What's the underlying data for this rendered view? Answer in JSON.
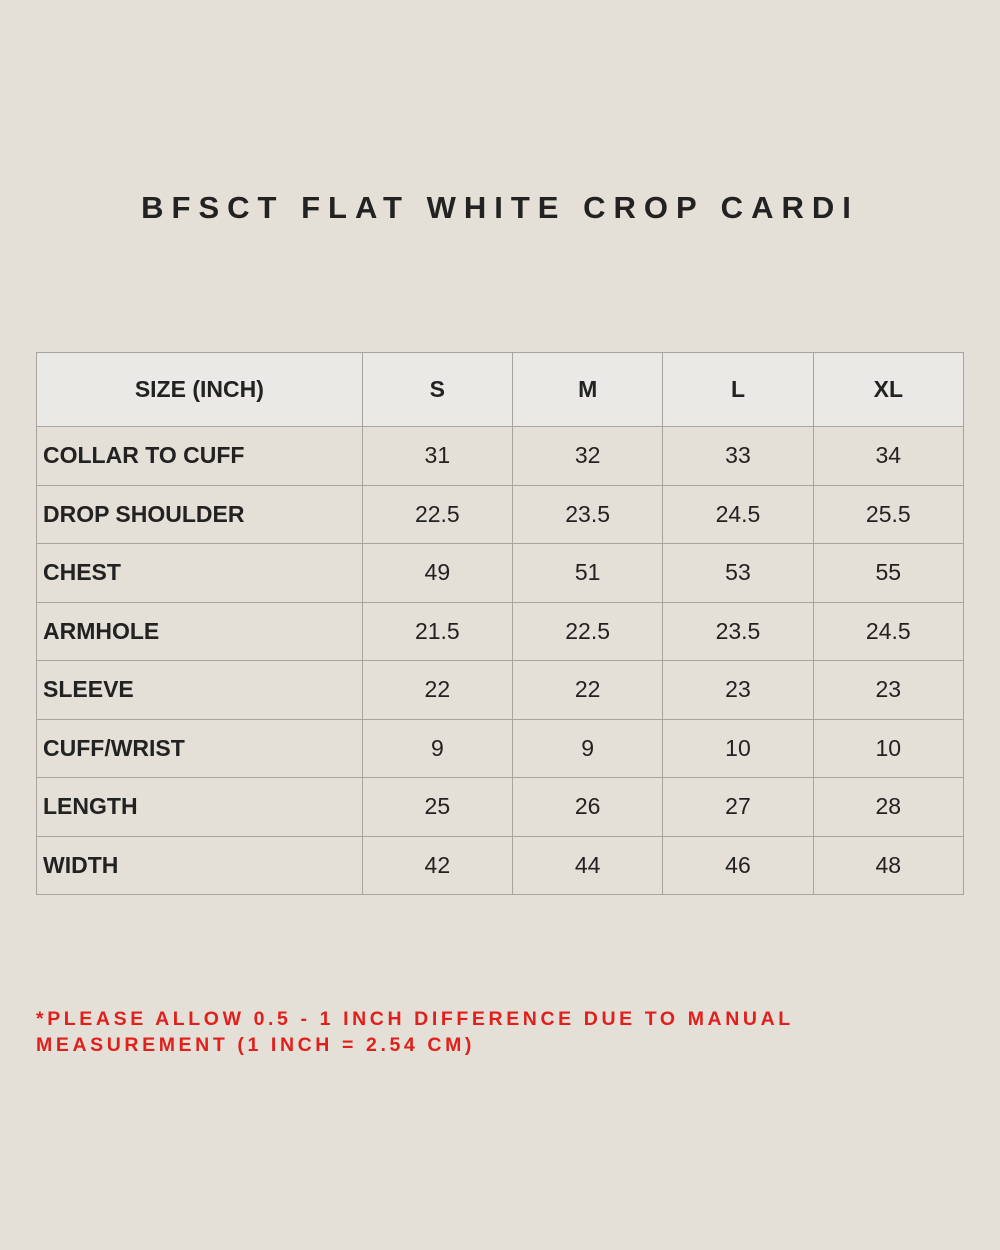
{
  "title": "BFSCT FLAT WHITE CROP CARDI",
  "table": {
    "headers": [
      "SIZE (INCH)",
      "S",
      "M",
      "L",
      "XL"
    ],
    "rows": [
      {
        "label": "COLLAR TO CUFF",
        "values": [
          "31",
          "32",
          "33",
          "34"
        ]
      },
      {
        "label": "DROP SHOULDER",
        "values": [
          "22.5",
          "23.5",
          "24.5",
          "25.5"
        ]
      },
      {
        "label": "CHEST",
        "values": [
          "49",
          "51",
          "53",
          "55"
        ]
      },
      {
        "label": "ARMHOLE",
        "values": [
          "21.5",
          "22.5",
          "23.5",
          "24.5"
        ]
      },
      {
        "label": "SLEEVE",
        "values": [
          "22",
          "22",
          "23",
          "23"
        ]
      },
      {
        "label": "CUFF/WRIST",
        "values": [
          "9",
          "9",
          "10",
          "10"
        ]
      },
      {
        "label": "LENGTH",
        "values": [
          "25",
          "26",
          "27",
          "28"
        ]
      },
      {
        "label": "WIDTH",
        "values": [
          "42",
          "44",
          "46",
          "48"
        ]
      }
    ]
  },
  "note_line1": "*PLEASE ALLOW 0.5 - 1 INCH DIFFERENCE DUE TO MANUAL",
  "note_line2": "MEASUREMENT (1 INCH = 2.54 CM)",
  "colors": {
    "background": "#e5e0d7",
    "note": "#e0201c",
    "header_bg": "#ebe9e5"
  }
}
